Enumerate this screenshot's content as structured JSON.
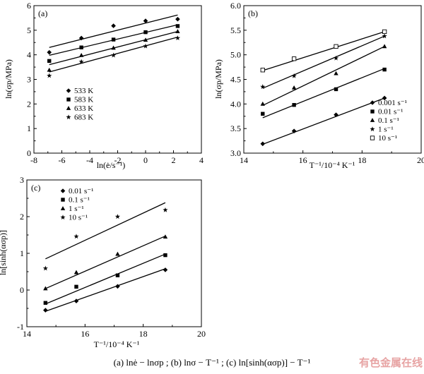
{
  "caption": "(a)   lnė − lnσp  ;  (b)  lnσ − T⁻¹ ; (c)  ln[sinh(ασp)] − T⁻¹",
  "watermark": "有色金属在线",
  "chart_data": [
    {
      "type": "scatter",
      "panel_label": "(a)",
      "xlabel": "ln(ė/s⁻¹)",
      "ylabel": "ln(σp/MPa)",
      "xlim": [
        -8,
        4
      ],
      "ylim": [
        0,
        6
      ],
      "xticks": [
        -8,
        -6,
        -4,
        -2,
        0,
        2,
        4
      ],
      "yticks": [
        0,
        1,
        2,
        3,
        4,
        5,
        6
      ],
      "grid": false,
      "legend_position": "center-left",
      "series": [
        {
          "name": "533 K",
          "marker": "diamond",
          "x": [
            -6.9,
            -4.6,
            -2.3,
            0,
            2.3
          ],
          "y": [
            4.1,
            4.68,
            5.18,
            5.38,
            5.45
          ],
          "fit": [
            [
              -6.9,
              4.3
            ],
            [
              2.3,
              5.62
            ]
          ]
        },
        {
          "name": "583 K",
          "marker": "square",
          "x": [
            -6.9,
            -4.6,
            -2.3,
            0,
            2.3
          ],
          "y": [
            3.75,
            4.3,
            4.62,
            4.92,
            5.17
          ],
          "fit": [
            [
              -6.9,
              3.98
            ],
            [
              2.3,
              5.22
            ]
          ]
        },
        {
          "name": "633 K",
          "marker": "triangle",
          "x": [
            -6.9,
            -4.6,
            -2.3,
            0,
            2.3
          ],
          "y": [
            3.38,
            3.98,
            4.28,
            4.6,
            4.95
          ],
          "fit": [
            [
              -6.9,
              3.6
            ],
            [
              2.3,
              4.95
            ]
          ]
        },
        {
          "name": "683 K",
          "marker": "star",
          "x": [
            -6.9,
            -4.6,
            -2.3,
            0,
            2.3
          ],
          "y": [
            3.15,
            3.72,
            3.98,
            4.35,
            4.68
          ],
          "fit": [
            [
              -6.9,
              3.3
            ],
            [
              2.3,
              4.72
            ]
          ]
        }
      ]
    },
    {
      "type": "scatter",
      "panel_label": "(b)",
      "xlabel": "T⁻¹/10⁻⁴ K⁻¹",
      "ylabel": "ln(σp/MPa)",
      "xlim": [
        14,
        20
      ],
      "ylim": [
        3.0,
        6.0
      ],
      "xticks": [
        14,
        16,
        18,
        20
      ],
      "yticks": [
        3.0,
        3.5,
        4.0,
        4.5,
        5.0,
        5.5,
        6.0
      ],
      "grid": false,
      "legend_position": "bottom-right",
      "series": [
        {
          "name": "0.001 s⁻¹",
          "marker": "diamond",
          "x": [
            14.64,
            15.7,
            17.12,
            18.76
          ],
          "y": [
            3.19,
            3.45,
            3.78,
            4.12
          ],
          "fit": [
            [
              14.64,
              3.18
            ],
            [
              18.76,
              4.12
            ]
          ]
        },
        {
          "name": "0.01 s⁻¹",
          "marker": "square",
          "x": [
            14.64,
            15.7,
            17.12,
            18.76
          ],
          "y": [
            3.8,
            3.98,
            4.3,
            4.7
          ],
          "fit": [
            [
              14.64,
              3.72
            ],
            [
              18.76,
              4.72
            ]
          ]
        },
        {
          "name": "0.1 s⁻¹",
          "marker": "triangle",
          "x": [
            14.64,
            15.7,
            17.12,
            18.76
          ],
          "y": [
            4.0,
            4.33,
            4.62,
            5.17
          ],
          "fit": [
            [
              14.64,
              3.97
            ],
            [
              18.76,
              5.17
            ]
          ]
        },
        {
          "name": "1 s⁻¹",
          "marker": "star",
          "x": [
            14.64,
            15.7,
            17.12,
            18.76
          ],
          "y": [
            4.35,
            4.57,
            4.93,
            5.38
          ],
          "fit": [
            [
              14.64,
              4.32
            ],
            [
              18.76,
              5.38
            ]
          ]
        },
        {
          "name": "10 s⁻¹",
          "marker": "open-square",
          "x": [
            14.64,
            15.7,
            17.12,
            18.76
          ],
          "y": [
            4.69,
            4.92,
            5.17,
            5.47
          ],
          "fit": [
            [
              14.64,
              4.68
            ],
            [
              18.76,
              5.47
            ]
          ]
        }
      ]
    },
    {
      "type": "scatter",
      "panel_label": "(c)",
      "xlabel": "T⁻¹/10⁻⁴ K⁻¹",
      "ylabel": "ln[sinh(ασp)]",
      "xlim": [
        14,
        20
      ],
      "ylim": [
        -1,
        3
      ],
      "xticks": [
        14,
        16,
        18,
        20
      ],
      "yticks": [
        -1,
        0,
        1,
        2,
        3
      ],
      "grid": false,
      "legend_position": "top-left",
      "series": [
        {
          "name": "0.01 s⁻¹",
          "marker": "diamond",
          "x": [
            14.64,
            15.7,
            17.12,
            18.76
          ],
          "y": [
            -0.55,
            -0.3,
            0.1,
            0.55
          ],
          "fit": [
            [
              14.64,
              -0.58
            ],
            [
              18.76,
              0.58
            ]
          ]
        },
        {
          "name": "0.1 s⁻¹",
          "marker": "square",
          "x": [
            14.64,
            15.7,
            17.12,
            18.76
          ],
          "y": [
            -0.35,
            0.09,
            0.4,
            0.95
          ],
          "fit": [
            [
              14.64,
              -0.38
            ],
            [
              18.76,
              0.98
            ]
          ]
        },
        {
          "name": "1 s⁻¹",
          "marker": "triangle",
          "x": [
            14.64,
            15.7,
            17.12,
            18.76
          ],
          "y": [
            0.04,
            0.48,
            0.98,
            1.45
          ],
          "fit": [
            [
              14.64,
              0.04
            ],
            [
              18.76,
              1.47
            ]
          ]
        },
        {
          "name": "10 s⁻¹",
          "marker": "star",
          "x": [
            14.64,
            15.7,
            17.12,
            18.76
          ],
          "y": [
            0.59,
            1.46,
            2.0,
            2.18
          ],
          "fit": [
            [
              14.64,
              0.85
            ],
            [
              18.76,
              2.38
            ]
          ]
        }
      ]
    }
  ]
}
